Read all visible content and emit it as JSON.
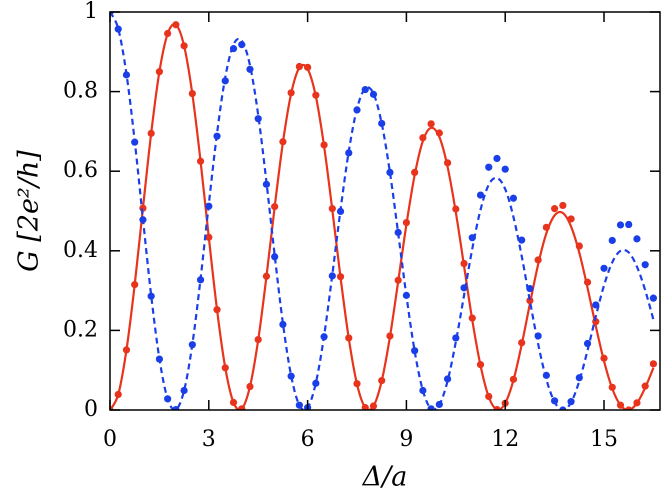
{
  "chart_data": {
    "type": "line",
    "xlabel": "Δ/a",
    "ylabel": "G  [2e²/h]",
    "xlim": [
      0,
      16.7
    ],
    "ylim": [
      0,
      1
    ],
    "xticks": [
      0,
      3,
      6,
      9,
      12,
      15
    ],
    "yticks": [
      0,
      0.2,
      0.4,
      0.6,
      0.8,
      1
    ],
    "grid": false,
    "x": [
      0,
      0.25,
      0.5,
      0.75,
      1,
      1.25,
      1.5,
      1.75,
      2,
      2.25,
      2.5,
      2.75,
      3,
      3.25,
      3.5,
      3.75,
      4,
      4.25,
      4.5,
      4.75,
      5,
      5.25,
      5.5,
      5.75,
      6,
      6.25,
      6.5,
      6.75,
      7,
      7.25,
      7.5,
      7.75,
      8,
      8.25,
      8.5,
      8.75,
      9,
      9.25,
      9.5,
      9.75,
      10,
      10.25,
      10.5,
      10.75,
      11,
      11.25,
      11.5,
      11.75,
      12,
      12.25,
      12.5,
      12.75,
      13,
      13.25,
      13.5,
      13.75,
      14,
      14.25,
      14.5,
      14.75,
      15,
      15.25,
      15.5,
      15.75,
      16,
      16.25,
      16.5
    ],
    "series": [
      {
        "color": "#e8341c",
        "mark": "line",
        "dashed": false,
        "values": [
          0,
          0.039,
          0.151,
          0.315,
          0.507,
          0.695,
          0.85,
          0.945,
          0.968,
          0.915,
          0.794,
          0.625,
          0.434,
          0.252,
          0.106,
          0.019,
          0.003,
          0.059,
          0.176,
          0.335,
          0.51,
          0.672,
          0.795,
          0.86,
          0.857,
          0.788,
          0.663,
          0.503,
          0.333,
          0.18,
          0.065,
          0.006,
          0.01,
          0.073,
          0.184,
          0.323,
          0.466,
          0.59,
          0.676,
          0.709,
          0.686,
          0.611,
          0.497,
          0.362,
          0.226,
          0.112,
          0.033,
          0.001,
          0.017,
          0.075,
          0.164,
          0.267,
          0.366,
          0.444,
          0.489,
          0.495,
          0.461,
          0.395,
          0.307,
          0.211,
          0.123,
          0.054,
          0.012,
          0,
          0.017,
          0.056,
          0.106
        ]
      },
      {
        "color": "#e8341c",
        "mark": "marker",
        "dashed": false,
        "values": [
          0,
          0.039,
          0.151,
          0.315,
          0.507,
          0.695,
          0.85,
          0.946,
          0.968,
          0.915,
          0.795,
          0.625,
          0.434,
          0.252,
          0.106,
          0.019,
          0.003,
          0.059,
          0.177,
          0.336,
          0.511,
          0.674,
          0.797,
          0.863,
          0.861,
          0.791,
          0.666,
          0.506,
          0.335,
          0.181,
          0.066,
          0.006,
          0.01,
          0.074,
          0.186,
          0.326,
          0.471,
          0.597,
          0.684,
          0.719,
          0.696,
          0.621,
          0.505,
          0.368,
          0.231,
          0.114,
          0.034,
          0.001,
          0.017,
          0.077,
          0.169,
          0.275,
          0.377,
          0.459,
          0.506,
          0.514,
          0.48,
          0.412,
          0.321,
          0.222,
          0.13,
          0.057,
          0.012,
          0,
          0.018,
          0.06,
          0.116
        ]
      },
      {
        "color": "#1a3fe8",
        "mark": "line",
        "dashed": true,
        "values": [
          1,
          0.958,
          0.844,
          0.676,
          0.48,
          0.288,
          0.129,
          0.028,
          0.001,
          0.049,
          0.165,
          0.33,
          0.517,
          0.695,
          0.836,
          0.918,
          0.928,
          0.866,
          0.741,
          0.573,
          0.389,
          0.218,
          0.086,
          0.012,
          0.006,
          0.068,
          0.186,
          0.34,
          0.503,
          0.65,
          0.757,
          0.808,
          0.795,
          0.72,
          0.597,
          0.444,
          0.287,
          0.148,
          0.049,
          0.003,
          0.013,
          0.073,
          0.171,
          0.288,
          0.405,
          0.503,
          0.566,
          0.583,
          0.555,
          0.485,
          0.387,
          0.274,
          0.166,
          0.077,
          0.02,
          0,
          0.019,
          0.073,
          0.15,
          0.235,
          0.313,
          0.371,
          0.4,
          0.396,
          0.36,
          0.301,
          0.227
        ]
      },
      {
        "color": "#1a3fe8",
        "mark": "marker",
        "dashed": false,
        "values": [
          1,
          0.957,
          0.842,
          0.673,
          0.478,
          0.286,
          0.128,
          0.028,
          0.001,
          0.049,
          0.164,
          0.327,
          0.512,
          0.688,
          0.827,
          0.908,
          0.918,
          0.856,
          0.732,
          0.567,
          0.385,
          0.215,
          0.085,
          0.012,
          0.006,
          0.067,
          0.184,
          0.337,
          0.499,
          0.646,
          0.754,
          0.805,
          0.793,
          0.72,
          0.597,
          0.446,
          0.288,
          0.149,
          0.049,
          0.003,
          0.014,
          0.078,
          0.181,
          0.307,
          0.433,
          0.54,
          0.61,
          0.632,
          0.605,
          0.532,
          0.427,
          0.305,
          0.186,
          0.087,
          0.023,
          0,
          0.021,
          0.081,
          0.167,
          0.264,
          0.356,
          0.426,
          0.465,
          0.466,
          0.43,
          0.365,
          0.281
        ]
      }
    ]
  }
}
